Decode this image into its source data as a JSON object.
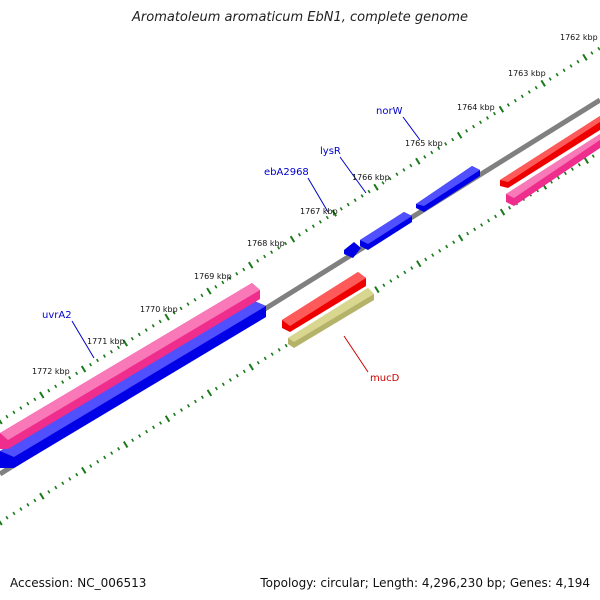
{
  "title": "Aromatoleum aromaticum EbN1, complete genome",
  "footer": {
    "accession": "Accession: NC_006513",
    "summary": "Topology: circular; Length: 4,296,230 bp; Genes: 4,194"
  },
  "ticks": [
    "1762 kbp",
    "1763 kbp",
    "1764 kbp",
    "1765 kbp",
    "1766 kbp",
    "1767 kbp",
    "1768 kbp",
    "1769 kbp",
    "1770 kbp",
    "1771 kbp",
    "1772 kbp"
  ],
  "gene_labels": [
    {
      "text": "norW",
      "color": "#0000cc"
    },
    {
      "text": "lysR",
      "color": "#0000cc"
    },
    {
      "text": "ebA2968",
      "color": "#0000cc"
    },
    {
      "text": "uvrA2",
      "color": "#0000cc"
    },
    {
      "text": "mucD",
      "color": "#cc0000"
    }
  ],
  "colors": {
    "backbone": "#808080",
    "cds_blue": "#0000e6",
    "cds_red": "#ee0000",
    "gene_pink": "#ee2d8c",
    "gene_khaki": "#b5b36a",
    "tick_green": "#1a7a1a"
  }
}
